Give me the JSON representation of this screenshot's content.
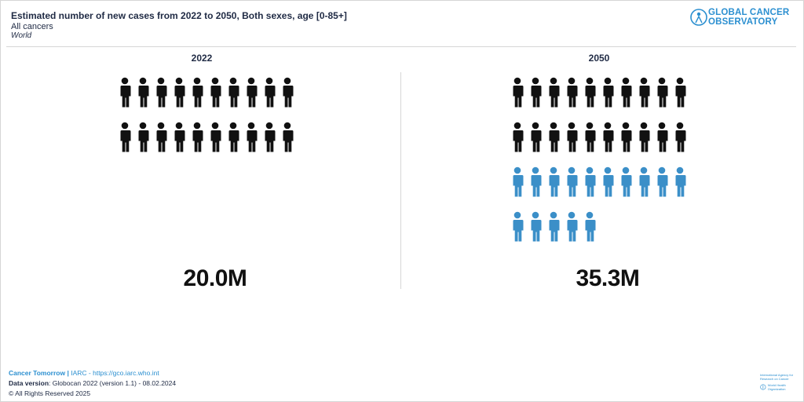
{
  "header": {
    "title": "Estimated number of new cases from 2022 to 2050, Both sexes, age [0-85+]",
    "subtitle": "All cancers",
    "region": "World",
    "logo_line1": "GLOBAL CANCER",
    "logo_line2": "OBSERVATORY"
  },
  "chart_data": {
    "type": "pictogram",
    "unit_per_icon": 1000000,
    "categories": [
      "2022",
      "2050"
    ],
    "values": [
      20.0,
      35.3
    ],
    "value_labels": [
      "20.0M",
      "35.3M"
    ],
    "baseline_icons": 20,
    "icons": [
      20,
      35
    ],
    "colors": {
      "baseline": "#111111",
      "increase": "#3b8fc8"
    }
  },
  "footer": {
    "tool": "Cancer Tomorrow",
    "sep": "|",
    "org": "IARC - https://gco.iarc.who.int",
    "data_version_label": "Data version",
    "data_version_value": ": Globocan 2022 (version 1.1) - 08.02.2024",
    "rights": "© All Rights Reserved 2025",
    "org_logo_text": "International Agency for Research on Cancer",
    "who_text": "World Health Organization"
  }
}
